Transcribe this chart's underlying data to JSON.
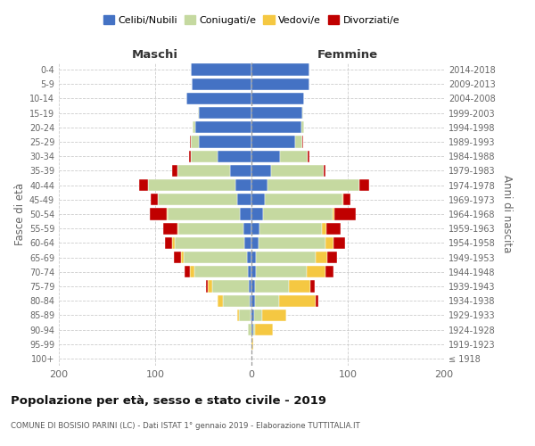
{
  "age_groups": [
    "100+",
    "95-99",
    "90-94",
    "85-89",
    "80-84",
    "75-79",
    "70-74",
    "65-69",
    "60-64",
    "55-59",
    "50-54",
    "45-49",
    "40-44",
    "35-39",
    "30-34",
    "25-29",
    "20-24",
    "15-19",
    "10-14",
    "5-9",
    "0-4"
  ],
  "birth_years": [
    "≤ 1918",
    "1919-1923",
    "1924-1928",
    "1929-1933",
    "1934-1938",
    "1939-1943",
    "1944-1948",
    "1949-1953",
    "1954-1958",
    "1959-1963",
    "1964-1968",
    "1969-1973",
    "1974-1978",
    "1979-1983",
    "1984-1988",
    "1989-1993",
    "1994-1998",
    "1999-2003",
    "2004-2008",
    "2009-2013",
    "2014-2018"
  ],
  "male": {
    "celibi": [
      0,
      0,
      0,
      1,
      2,
      3,
      4,
      5,
      7,
      8,
      12,
      15,
      17,
      22,
      35,
      55,
      58,
      55,
      68,
      62,
      63
    ],
    "coniugati": [
      0,
      0,
      4,
      12,
      28,
      38,
      55,
      65,
      73,
      68,
      75,
      82,
      90,
      55,
      28,
      8,
      3,
      1,
      0,
      0,
      0
    ],
    "vedovi": [
      0,
      0,
      0,
      2,
      5,
      4,
      5,
      3,
      2,
      1,
      1,
      0,
      0,
      0,
      0,
      0,
      0,
      0,
      0,
      0,
      0
    ],
    "divorziati": [
      0,
      0,
      0,
      0,
      0,
      2,
      5,
      8,
      8,
      15,
      18,
      8,
      10,
      5,
      2,
      1,
      0,
      0,
      0,
      0,
      0
    ]
  },
  "female": {
    "celibi": [
      0,
      0,
      2,
      3,
      4,
      4,
      5,
      5,
      7,
      8,
      12,
      14,
      17,
      20,
      30,
      45,
      52,
      53,
      55,
      60,
      60
    ],
    "coniugati": [
      0,
      0,
      2,
      8,
      25,
      35,
      52,
      62,
      70,
      65,
      72,
      80,
      95,
      55,
      28,
      8,
      3,
      1,
      0,
      0,
      0
    ],
    "vedovi": [
      0,
      2,
      18,
      25,
      38,
      22,
      20,
      12,
      8,
      5,
      2,
      1,
      0,
      0,
      0,
      0,
      0,
      0,
      0,
      0,
      0
    ],
    "divorziati": [
      0,
      0,
      0,
      0,
      2,
      5,
      8,
      10,
      12,
      15,
      22,
      8,
      10,
      2,
      2,
      1,
      0,
      0,
      0,
      0,
      0
    ]
  },
  "colors": {
    "celibi": "#4472c4",
    "coniugati": "#c5d9a0",
    "vedovi": "#f5c842",
    "divorziati": "#c00000"
  },
  "xlim": 200,
  "title": "Popolazione per età, sesso e stato civile - 2019",
  "subtitle": "COMUNE DI BOSISIO PARINI (LC) - Dati ISTAT 1° gennaio 2019 - Elaborazione TUTTITALIA.IT",
  "ylabel_left": "Fasce di età",
  "ylabel_right": "Anni di nascita",
  "xlabel_left": "Maschi",
  "xlabel_right": "Femmine",
  "legend_labels": [
    "Celibi/Nubili",
    "Coniugati/e",
    "Vedovi/e",
    "Divorziati/e"
  ],
  "background_color": "#ffffff",
  "bar_height": 0.82
}
